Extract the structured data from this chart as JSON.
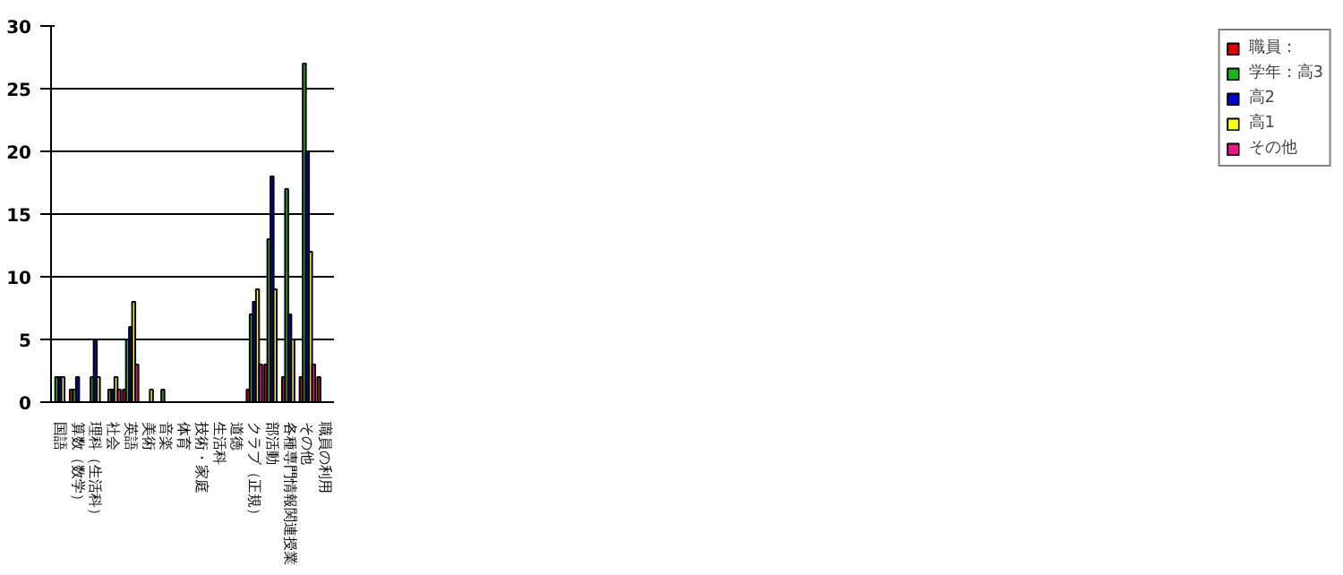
{
  "chart_data": {
    "type": "bar",
    "categories": [
      "国語",
      "算数（数学）",
      "理科（生活科）",
      "社会",
      "英語",
      "美術",
      "音楽",
      "体育",
      "技術・家庭",
      "生活科",
      "道徳",
      "クラブ（正規）",
      "部活動",
      "各種専門情報関連授業",
      "その他",
      "職員の利用"
    ],
    "series": [
      {
        "name": "職員：",
        "color": "#e00000",
        "values": [
          0,
          1,
          0,
          0,
          1,
          0,
          0,
          0,
          0,
          0,
          0,
          1,
          3,
          2,
          2,
          2
        ]
      },
      {
        "name": "学年：高3",
        "color": "#18b818",
        "values": [
          2,
          1,
          2,
          1,
          5,
          0,
          1,
          0,
          0,
          0,
          0,
          7,
          13,
          17,
          27,
          0
        ]
      },
      {
        "name": "高2",
        "color": "#0000d0",
        "values": [
          2,
          2,
          5,
          1,
          6,
          0,
          0,
          0,
          0,
          0,
          0,
          8,
          18,
          7,
          20,
          0
        ]
      },
      {
        "name": "高1",
        "color": "#ffff00",
        "values": [
          2,
          0,
          2,
          2,
          8,
          1,
          0,
          0,
          0,
          0,
          0,
          9,
          9,
          5,
          12,
          0
        ]
      },
      {
        "name": "その他",
        "color": "#f0148c",
        "values": [
          0,
          0,
          0,
          1,
          3,
          0,
          0,
          0,
          0,
          0,
          0,
          3,
          0,
          0,
          3,
          0
        ]
      }
    ],
    "ylim": [
      0,
      30
    ],
    "yticks": [
      0,
      5,
      10,
      15,
      20,
      25,
      30
    ],
    "grid": "y",
    "legend": "right"
  }
}
